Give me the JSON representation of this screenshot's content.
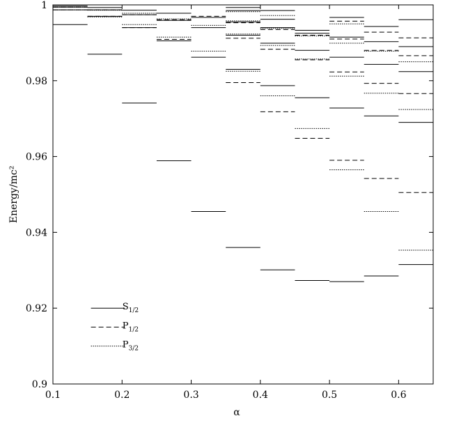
{
  "chart_data": {
    "type": "line",
    "xlabel": "α",
    "ylabel": "Energy/mc²",
    "xlim": [
      0.1,
      0.65
    ],
    "ylim": [
      0.9,
      1.0
    ],
    "x_ticks": [
      0.1,
      0.2,
      0.3,
      0.4,
      0.5,
      0.6
    ],
    "x_tick_labels": [
      "0.1",
      "0.2",
      "0.3",
      "0.4",
      "0.5",
      "0.6"
    ],
    "y_ticks": [
      0.9,
      0.92,
      0.94,
      0.96,
      0.98,
      1.0
    ],
    "y_tick_labels": [
      "0.9",
      "0.92",
      "0.94",
      "0.96",
      "0.98",
      "1"
    ],
    "grid": false,
    "legend_position": "bottom-left",
    "level_half_width": 0.025,
    "series": [
      {
        "name": "S",
        "name_subscript": "1/2",
        "dash": "solid",
        "levels": [
          {
            "x": 0.125,
            "y": [
              0.9948,
              0.9987,
              0.9994,
              0.9997
            ]
          },
          {
            "x": 0.175,
            "y": [
              0.987,
              0.997,
              0.9987,
              0.9993
            ]
          },
          {
            "x": 0.225,
            "y": [
              0.9741,
              0.994,
              0.9974,
              0.9986
            ]
          },
          {
            "x": 0.275,
            "y": [
              0.9589,
              0.9905,
              0.9959,
              0.9978
            ]
          },
          {
            "x": 0.325,
            "y": [
              0.9455,
              0.9862,
              0.994,
              0.9967
            ]
          },
          {
            "x": 0.375,
            "y": [
              0.936,
              0.983,
              0.992,
              0.9955,
              0.9985,
              0.9993
            ]
          },
          {
            "x": 0.425,
            "y": [
              0.9301,
              0.9787,
              0.9899,
              0.994,
              0.9962,
              0.9985
            ]
          },
          {
            "x": 0.475,
            "y": [
              0.9273,
              0.9755,
              0.988,
              0.9925,
              0.9933
            ]
          },
          {
            "x": 0.525,
            "y": [
              0.927,
              0.9728,
              0.9862,
              0.9915,
              0.9967
            ]
          },
          {
            "x": 0.575,
            "y": [
              0.9285,
              0.9707,
              0.9843,
              0.9903,
              0.9943
            ]
          },
          {
            "x": 0.625,
            "y": [
              0.9315,
              0.969,
              0.9824,
              0.989,
              0.9961
            ]
          }
        ]
      },
      {
        "name": "P",
        "name_subscript": "1/2",
        "dash": "dashed",
        "levels": [
          {
            "x": 0.125,
            "y": [
              0.9987,
              0.9994
            ]
          },
          {
            "x": 0.175,
            "y": [
              0.997,
              0.9987
            ]
          },
          {
            "x": 0.225,
            "y": [
              0.994,
              0.9974
            ]
          },
          {
            "x": 0.275,
            "y": [
              0.9909,
              0.9961
            ]
          },
          {
            "x": 0.325,
            "y": [
              0.997
            ]
          },
          {
            "x": 0.375,
            "y": [
              0.9795,
              0.9912,
              0.9953
            ]
          },
          {
            "x": 0.425,
            "y": [
              0.9718,
              0.9883,
              0.9935
            ]
          },
          {
            "x": 0.475,
            "y": [
              0.9648,
              0.9855,
              0.992
            ]
          },
          {
            "x": 0.525,
            "y": [
              0.959,
              0.9823,
              0.991,
              0.9957
            ]
          },
          {
            "x": 0.575,
            "y": [
              0.9542,
              0.9793,
              0.988,
              0.9928
            ]
          },
          {
            "x": 0.625,
            "y": [
              0.9505,
              0.9766,
              0.9866,
              0.9913
            ]
          }
        ]
      },
      {
        "name": "P",
        "name_subscript": "3/2",
        "dash": "dotted",
        "levels": [
          {
            "x": 0.125,
            "y": [
              0.9987,
              0.9994
            ]
          },
          {
            "x": 0.175,
            "y": [
              0.9968,
              0.9986
            ]
          },
          {
            "x": 0.225,
            "y": [
              0.9948,
              0.9978
            ]
          },
          {
            "x": 0.275,
            "y": [
              0.9915,
              0.9963
            ]
          },
          {
            "x": 0.325,
            "y": [
              0.9878,
              0.9946
            ]
          },
          {
            "x": 0.375,
            "y": [
              0.9825,
              0.9923,
              0.9958,
              0.9982
            ]
          },
          {
            "x": 0.425,
            "y": [
              0.976,
              0.9893,
              0.9938,
              0.9972
            ]
          },
          {
            "x": 0.475,
            "y": [
              0.9674,
              0.9857,
              0.9918
            ]
          },
          {
            "x": 0.525,
            "y": [
              0.9565,
              0.9812,
              0.9899,
              0.995
            ]
          },
          {
            "x": 0.575,
            "y": [
              0.9455,
              0.9767,
              0.9878
            ]
          },
          {
            "x": 0.625,
            "y": [
              0.9353,
              0.9724,
              0.985
            ]
          }
        ]
      }
    ]
  }
}
